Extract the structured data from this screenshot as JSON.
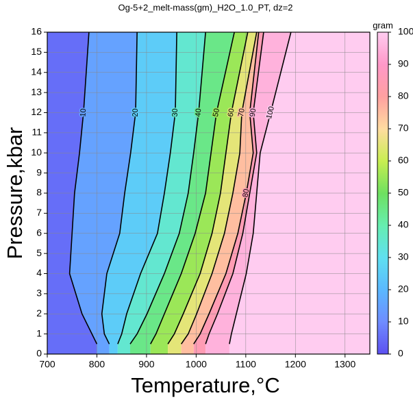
{
  "chart_data": {
    "type": "contour",
    "title": "Og-5+2_melt-mass(gm)_H2O_1.0_PT, dz=2",
    "x_label": "Temperature,°C",
    "y_label": "Pressure,kbar",
    "xlim": [
      700,
      1350
    ],
    "ylim": [
      0,
      16
    ],
    "xticks": [
      700,
      800,
      900,
      1000,
      1100,
      1200,
      1300
    ],
    "yticks": [
      0,
      1,
      2,
      3,
      4,
      5,
      6,
      7,
      8,
      9,
      10,
      11,
      12,
      13,
      14,
      15,
      16
    ],
    "grid": true,
    "y": [
      0.5,
      1,
      2,
      4,
      6,
      8,
      10,
      12,
      16
    ],
    "contours": [
      {
        "level": 10,
        "x": [
          800,
          790,
          770,
          745,
          750,
          755,
          765,
          773,
          784
        ]
      },
      {
        "level": 20,
        "x": [
          825,
          815,
          810,
          820,
          846,
          856,
          868,
          878,
          881
        ]
      },
      {
        "level": 30,
        "x": [
          842,
          850,
          860,
          888,
          922,
          936,
          948,
          958,
          961
        ]
      },
      {
        "level": 40,
        "x": [
          867,
          881,
          901,
          936,
          966,
          984,
          995,
          1005,
          1019
        ]
      },
      {
        "level": 50,
        "x": [
          908,
          919,
          936,
          970,
          998,
          1019,
          1030,
          1041,
          1077
        ]
      },
      {
        "level": 60,
        "x": [
          943,
          956,
          974,
          1008,
          1032,
          1049,
          1060,
          1071,
          1104
        ]
      },
      {
        "level": 70,
        "x": [
          970,
          984,
          1001,
          1032,
          1057,
          1074,
          1088,
          1092,
          1122
        ]
      },
      {
        "level": 80,
        "x": [
          995,
          1008,
          1026,
          1060,
          1084,
          1101,
          1115,
          1108,
          1126
        ]
      },
      {
        "level": 90,
        "x": [
          1019,
          1026,
          1043,
          1074,
          1094,
          1108,
          1122,
          1115,
          1136
        ]
      },
      {
        "level": 100,
        "x": [
          1067,
          1071,
          1081,
          1101,
          1115,
          1122,
          1129,
          1150,
          1191
        ]
      }
    ],
    "colorbar": {
      "label": "gram",
      "ticks": [
        0,
        10,
        20,
        30,
        40,
        50,
        60,
        70,
        80,
        90,
        100
      ],
      "colors": [
        "#5c4ff0",
        "#6f8cff",
        "#5ab8ff",
        "#5fe0f0",
        "#66eeb0",
        "#6ee060",
        "#c8ee50",
        "#ffdca0",
        "#ffa0a0",
        "#ff98c8",
        "#ffccf0"
      ]
    }
  }
}
